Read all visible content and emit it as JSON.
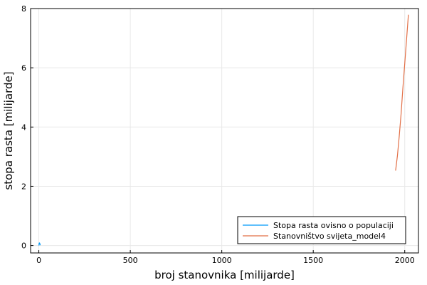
{
  "chart_data": {
    "type": "line",
    "xlabel": "broj stanovnika [milijarde]",
    "ylabel": "stopa rasta [milijarde]",
    "xlim": [
      -45,
      2075
    ],
    "ylim": [
      -0.25,
      8.0
    ],
    "xticks": [
      0,
      500,
      1000,
      1500,
      2000
    ],
    "xtick_labels": [
      "0",
      "500",
      "1000",
      "1500",
      "2000"
    ],
    "yticks": [
      0,
      2,
      4,
      6,
      8
    ],
    "ytick_labels": [
      "0",
      "2",
      "4",
      "6",
      "8"
    ],
    "grid": true,
    "legend_position": "bottom-right",
    "series": [
      {
        "name": "Stopa rasta ovisno o populaciji",
        "color": "#009af9",
        "x": [
          0.5,
          1.2,
          2.0,
          3.0,
          4.5,
          6.0,
          7.7
        ],
        "y": [
          0.0,
          0.06,
          0.08,
          0.09,
          0.08,
          0.05,
          0.01
        ]
      },
      {
        "name": "Stanovništvo svijeta_model4",
        "color": "#e26f46",
        "x": [
          1950,
          1960,
          1970,
          1980,
          1990,
          2000,
          2010,
          2020
        ],
        "y": [
          2.53,
          3.03,
          3.7,
          4.44,
          5.33,
          6.14,
          6.96,
          7.79
        ]
      }
    ]
  }
}
